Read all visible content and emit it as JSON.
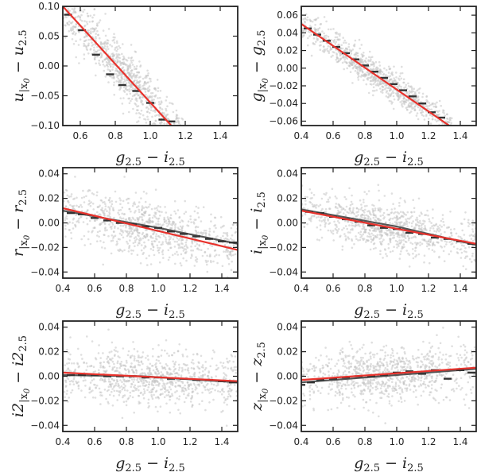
{
  "colors": {
    "scatter": "#c4c4c4",
    "binned": "#333333",
    "fit": "#e8322c",
    "frame": "#222222"
  },
  "chart_data": [
    {
      "type": "scatter",
      "id": "u",
      "ylabel": "u|x0 − u2.5",
      "ylabel_parts": {
        "main": "u",
        "sub": "|x",
        "subsub": "0",
        "rest": " − u",
        "sub2": "2.5"
      },
      "xlabel": "g2.5 − i2.5",
      "xlim": [
        0.5,
        1.5
      ],
      "ylim": [
        -0.1,
        0.1
      ],
      "xticks": [
        0.6,
        0.8,
        1.0,
        1.2,
        1.4
      ],
      "xtick_labels": [
        "0.6",
        "0.8",
        "1.0",
        "1.2",
        "1.4"
      ],
      "yticks": [
        -0.1,
        -0.05,
        0.0,
        0.05,
        0.1
      ],
      "ytick_labels": [
        "−0.10",
        "−0.05",
        "0.00",
        "0.05",
        "0.10"
      ],
      "fit": {
        "x": [
          0.5,
          1.12
        ],
        "y": [
          0.1,
          -0.1
        ]
      },
      "scatter_spec": {
        "x_range": [
          0.5,
          1.2
        ],
        "slope": -0.32,
        "intercept": 0.26,
        "spread": 0.022
      },
      "binned": [
        {
          "x": 0.53,
          "y": 0.086
        },
        {
          "x": 0.61,
          "y": 0.06
        },
        {
          "x": 0.69,
          "y": 0.019
        },
        {
          "x": 0.77,
          "y": -0.014
        },
        {
          "x": 0.84,
          "y": -0.032
        },
        {
          "x": 0.92,
          "y": -0.042
        },
        {
          "x": 1.0,
          "y": -0.062
        },
        {
          "x": 1.07,
          "y": -0.09
        },
        {
          "x": 1.12,
          "y": -0.093
        }
      ]
    },
    {
      "type": "scatter",
      "id": "g",
      "ylabel": "g|x0 − g2.5",
      "ylabel_parts": {
        "main": "g",
        "sub": "|x",
        "subsub": "0",
        "rest": " − g",
        "sub2": "2.5"
      },
      "xlabel": "g2.5 − i2.5",
      "xlim": [
        0.4,
        1.5
      ],
      "ylim": [
        -0.065,
        0.07
      ],
      "xticks": [
        0.4,
        0.6,
        0.8,
        1.0,
        1.2,
        1.4
      ],
      "xtick_labels": [
        "0.4",
        "0.6",
        "0.8",
        "1.0",
        "1.2",
        "1.4"
      ],
      "yticks": [
        -0.06,
        -0.04,
        -0.02,
        0.0,
        0.02,
        0.04,
        0.06
      ],
      "ytick_labels": [
        "−0.06",
        "−0.04",
        "−0.02",
        "0.00",
        "0.02",
        "0.04",
        "0.06"
      ],
      "fit": {
        "x": [
          0.4,
          1.33
        ],
        "y": [
          0.05,
          -0.065
        ]
      },
      "scatter_spec": {
        "x_range": [
          0.4,
          1.35
        ],
        "slope": -0.124,
        "intercept": 0.1,
        "spread": 0.009
      },
      "binned": [
        {
          "x": 0.44,
          "y": 0.045
        },
        {
          "x": 0.5,
          "y": 0.038
        },
        {
          "x": 0.56,
          "y": 0.031
        },
        {
          "x": 0.62,
          "y": 0.024
        },
        {
          "x": 0.68,
          "y": 0.017
        },
        {
          "x": 0.74,
          "y": 0.01
        },
        {
          "x": 0.8,
          "y": 0.003
        },
        {
          "x": 0.86,
          "y": -0.004
        },
        {
          "x": 0.92,
          "y": -0.011
        },
        {
          "x": 0.98,
          "y": -0.018
        },
        {
          "x": 1.04,
          "y": -0.025
        },
        {
          "x": 1.1,
          "y": -0.032
        },
        {
          "x": 1.16,
          "y": -0.04
        },
        {
          "x": 1.22,
          "y": -0.05
        },
        {
          "x": 1.28,
          "y": -0.056
        }
      ]
    },
    {
      "type": "scatter",
      "id": "r",
      "ylabel": "r|x0 − r2.5",
      "ylabel_parts": {
        "main": "r",
        "sub": "|x",
        "subsub": "0",
        "rest": " − r",
        "sub2": "2.5"
      },
      "xlabel": "g2.5 − i2.5",
      "xlim": [
        0.4,
        1.5
      ],
      "ylim": [
        -0.045,
        0.045
      ],
      "xticks": [
        0.4,
        0.6,
        0.8,
        1.0,
        1.2,
        1.4
      ],
      "xtick_labels": [
        "0.4",
        "0.6",
        "0.8",
        "1.0",
        "1.2",
        "1.4"
      ],
      "yticks": [
        -0.04,
        -0.02,
        0.0,
        0.02,
        0.04
      ],
      "ytick_labels": [
        "−0.04",
        "−0.02",
        "0.00",
        "0.02",
        "0.04"
      ],
      "fit": {
        "x": [
          0.4,
          1.5
        ],
        "y": [
          0.012,
          -0.022
        ]
      },
      "trend": {
        "x": [
          0.4,
          0.7,
          1.0,
          1.5
        ],
        "y": [
          0.01,
          0.003,
          -0.004,
          -0.017
        ]
      },
      "scatter_spec": {
        "x_range": [
          0.4,
          1.5
        ],
        "slope": -0.026,
        "intercept": 0.02,
        "spread": 0.011
      },
      "binned": [
        {
          "x": 0.45,
          "y": 0.008
        },
        {
          "x": 0.52,
          "y": 0.007
        },
        {
          "x": 0.6,
          "y": 0.004
        },
        {
          "x": 0.68,
          "y": 0.002
        },
        {
          "x": 0.76,
          "y": 0.0
        },
        {
          "x": 0.84,
          "y": -0.001
        },
        {
          "x": 0.92,
          "y": -0.003
        },
        {
          "x": 1.0,
          "y": -0.004
        },
        {
          "x": 1.08,
          "y": -0.007
        },
        {
          "x": 1.16,
          "y": -0.009
        },
        {
          "x": 1.24,
          "y": -0.011
        },
        {
          "x": 1.32,
          "y": -0.013
        },
        {
          "x": 1.4,
          "y": -0.015
        },
        {
          "x": 1.47,
          "y": -0.016
        }
      ]
    },
    {
      "type": "scatter",
      "id": "i",
      "ylabel": "i|x0 − i2.5",
      "ylabel_parts": {
        "main": "i",
        "sub": "|x",
        "subsub": "0",
        "rest": " − i",
        "sub2": "2.5"
      },
      "xlabel": "g2.5 − i2.5",
      "xlim": [
        0.4,
        1.5
      ],
      "ylim": [
        -0.045,
        0.045
      ],
      "xticks": [
        0.4,
        0.6,
        0.8,
        1.0,
        1.2,
        1.4
      ],
      "xtick_labels": [
        "0.4",
        "0.6",
        "0.8",
        "1.0",
        "1.2",
        "1.4"
      ],
      "yticks": [
        -0.04,
        -0.02,
        0.0,
        0.02,
        0.04
      ],
      "ytick_labels": [
        "−0.04",
        "−0.02",
        "0.00",
        "0.02",
        "0.04"
      ],
      "fit": {
        "x": [
          0.4,
          1.5
        ],
        "y": [
          0.01,
          -0.017
        ]
      },
      "trend": {
        "x": [
          0.4,
          0.7,
          1.0,
          1.5
        ],
        "y": [
          0.011,
          0.004,
          -0.003,
          -0.018
        ]
      },
      "scatter_spec": {
        "x_range": [
          0.4,
          1.5
        ],
        "slope": -0.025,
        "intercept": 0.02,
        "spread": 0.01
      },
      "binned": [
        {
          "x": 0.45,
          "y": 0.009
        },
        {
          "x": 0.52,
          "y": 0.008
        },
        {
          "x": 0.6,
          "y": 0.005
        },
        {
          "x": 0.68,
          "y": 0.003
        },
        {
          "x": 0.76,
          "y": 0.001
        },
        {
          "x": 0.84,
          "y": -0.002
        },
        {
          "x": 0.92,
          "y": -0.004
        },
        {
          "x": 1.0,
          "y": -0.005
        },
        {
          "x": 1.08,
          "y": -0.008
        },
        {
          "x": 1.16,
          "y": -0.009
        },
        {
          "x": 1.24,
          "y": -0.012
        },
        {
          "x": 1.32,
          "y": -0.013
        },
        {
          "x": 1.4,
          "y": -0.015
        },
        {
          "x": 1.47,
          "y": -0.017
        }
      ]
    },
    {
      "type": "scatter",
      "id": "i2",
      "ylabel": "i2|x0 − i22.5",
      "ylabel_parts": {
        "main": "i2",
        "sub": "|x",
        "subsub": "0",
        "rest": " − i2",
        "sub2": "2.5"
      },
      "xlabel": "g2.5 − i2.5",
      "xlim": [
        0.4,
        1.5
      ],
      "ylim": [
        -0.045,
        0.045
      ],
      "xticks": [
        0.4,
        0.6,
        0.8,
        1.0,
        1.2,
        1.4
      ],
      "xtick_labels": [
        "0.4",
        "0.6",
        "0.8",
        "1.0",
        "1.2",
        "1.4"
      ],
      "yticks": [
        -0.04,
        -0.02,
        0.0,
        0.02,
        0.04
      ],
      "ytick_labels": [
        "−0.04",
        "−0.02",
        "0.00",
        "0.02",
        "0.04"
      ],
      "fit": {
        "x": [
          0.4,
          1.5
        ],
        "y": [
          0.003,
          -0.004
        ]
      },
      "trend": {
        "x": [
          0.4,
          0.9,
          1.5
        ],
        "y": [
          0.001,
          0.0,
          -0.005
        ]
      },
      "scatter_spec": {
        "x_range": [
          0.4,
          1.5
        ],
        "slope": -0.006,
        "intercept": 0.005,
        "spread": 0.011
      },
      "binned": [
        {
          "x": 0.45,
          "y": 0.001
        },
        {
          "x": 0.52,
          "y": 0.001
        },
        {
          "x": 0.6,
          "y": 0.001
        },
        {
          "x": 0.68,
          "y": 0.0
        },
        {
          "x": 0.76,
          "y": 0.0
        },
        {
          "x": 0.84,
          "y": 0.0
        },
        {
          "x": 0.92,
          "y": -0.001
        },
        {
          "x": 1.0,
          "y": -0.001
        },
        {
          "x": 1.08,
          "y": -0.002
        },
        {
          "x": 1.16,
          "y": -0.002
        },
        {
          "x": 1.24,
          "y": -0.003
        },
        {
          "x": 1.32,
          "y": -0.003
        },
        {
          "x": 1.4,
          "y": -0.004
        },
        {
          "x": 1.47,
          "y": -0.005
        }
      ]
    },
    {
      "type": "scatter",
      "id": "z",
      "ylabel": "z|x0 − z2.5",
      "ylabel_parts": {
        "main": "z",
        "sub": "|x",
        "subsub": "0",
        "rest": " − z",
        "sub2": "2.5"
      },
      "xlabel": "g2.5 − i2.5",
      "xlim": [
        0.4,
        1.5
      ],
      "ylim": [
        -0.045,
        0.045
      ],
      "xticks": [
        0.4,
        0.6,
        0.8,
        1.0,
        1.2,
        1.4
      ],
      "xtick_labels": [
        "0.4",
        "0.6",
        "0.8",
        "1.0",
        "1.2",
        "1.4"
      ],
      "yticks": [
        -0.04,
        -0.02,
        0.0,
        0.02,
        0.04
      ],
      "ytick_labels": [
        "−0.04",
        "−0.02",
        "0.00",
        "0.02",
        "0.04"
      ],
      "fit": {
        "x": [
          0.4,
          1.5
        ],
        "y": [
          -0.003,
          0.007
        ]
      },
      "trend": {
        "x": [
          0.4,
          0.9,
          1.5
        ],
        "y": [
          -0.005,
          0.0,
          0.006
        ]
      },
      "scatter_spec": {
        "x_range": [
          0.4,
          1.5
        ],
        "slope": 0.009,
        "intercept": -0.007,
        "spread": 0.011
      },
      "binned": [
        {
          "x": 0.4,
          "y": -0.007
        },
        {
          "x": 0.46,
          "y": -0.005
        },
        {
          "x": 0.52,
          "y": -0.003
        },
        {
          "x": 0.6,
          "y": -0.002
        },
        {
          "x": 0.68,
          "y": -0.001
        },
        {
          "x": 0.76,
          "y": 0.0
        },
        {
          "x": 0.84,
          "y": 0.0
        },
        {
          "x": 0.92,
          "y": 0.001
        },
        {
          "x": 1.0,
          "y": 0.003
        },
        {
          "x": 1.08,
          "y": 0.004
        },
        {
          "x": 1.16,
          "y": 0.002
        },
        {
          "x": 1.24,
          "y": 0.005
        },
        {
          "x": 1.32,
          "y": -0.002
        },
        {
          "x": 1.4,
          "y": 0.005
        },
        {
          "x": 1.47,
          "y": 0.003
        }
      ]
    }
  ]
}
